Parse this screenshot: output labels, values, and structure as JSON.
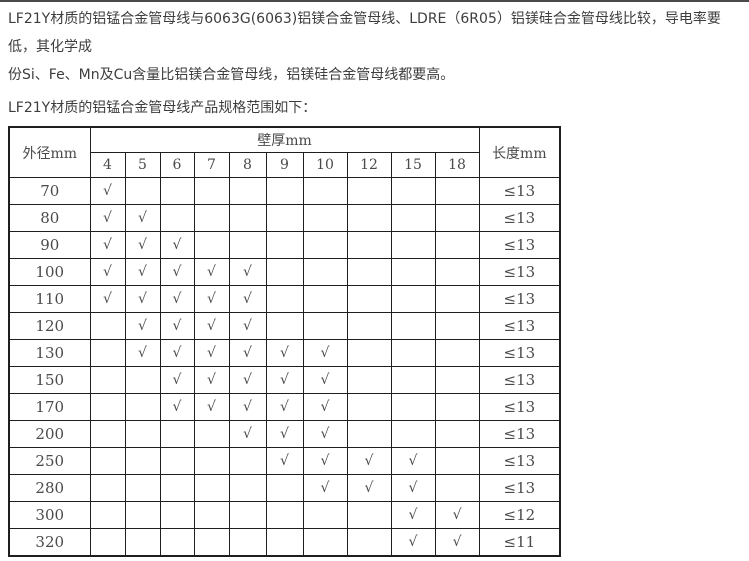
{
  "page": {
    "background": "#ffffff",
    "top_border_color": "#4a4a4a",
    "text_color": "#3d3d3d",
    "table_border_color": "#1f1f1f"
  },
  "intro": {
    "line1": "LF21Y材质的铝锰合金管母线与6063G(6063)铝镁合金管母线、LDRE（6R05）铝镁硅合金管母线比较，导电率要低，其化学成",
    "line2": "份Si、Fe、Mn及Cu含量比铝镁合金管母线，铝镁硅合金管母线都要高。",
    "spec_range_label": "LF21Y材质的铝锰合金管母线产品规格范围如下："
  },
  "table": {
    "outer_diameter_header": "外径mm",
    "wall_thickness_header": "壁厚mm",
    "length_header": "长度mm",
    "thickness_columns": [
      "4",
      "5",
      "6",
      "7",
      "8",
      "9",
      "10",
      "12",
      "15",
      "18"
    ],
    "check_mark": "√",
    "rows": [
      {
        "diameter": "70",
        "checks": [
          "4"
        ],
        "length": "≤13"
      },
      {
        "diameter": "80",
        "checks": [
          "4",
          "5"
        ],
        "length": "≤13"
      },
      {
        "diameter": "90",
        "checks": [
          "4",
          "5",
          "6"
        ],
        "length": "≤13"
      },
      {
        "diameter": "100",
        "checks": [
          "4",
          "5",
          "6",
          "7",
          "8"
        ],
        "length": "≤13"
      },
      {
        "diameter": "110",
        "checks": [
          "4",
          "5",
          "6",
          "7",
          "8"
        ],
        "length": "≤13"
      },
      {
        "diameter": "120",
        "checks": [
          "5",
          "6",
          "7",
          "8"
        ],
        "length": "≤13"
      },
      {
        "diameter": "130",
        "checks": [
          "5",
          "6",
          "7",
          "8",
          "9",
          "10"
        ],
        "length": "≤13"
      },
      {
        "diameter": "150",
        "checks": [
          "6",
          "7",
          "8",
          "9",
          "10"
        ],
        "length": "≤13"
      },
      {
        "diameter": "170",
        "checks": [
          "6",
          "7",
          "8",
          "9",
          "10"
        ],
        "length": "≤13"
      },
      {
        "diameter": "200",
        "checks": [
          "8",
          "9",
          "10"
        ],
        "length": "≤13"
      },
      {
        "diameter": "250",
        "checks": [
          "9",
          "10",
          "12",
          "15"
        ],
        "length": "≤13"
      },
      {
        "diameter": "280",
        "checks": [
          "10",
          "12",
          "15"
        ],
        "length": "≤13"
      },
      {
        "diameter": "300",
        "checks": [
          "15",
          "18"
        ],
        "length": "≤12"
      },
      {
        "diameter": "320",
        "checks": [
          "15",
          "18"
        ],
        "length": "≤11"
      }
    ]
  }
}
